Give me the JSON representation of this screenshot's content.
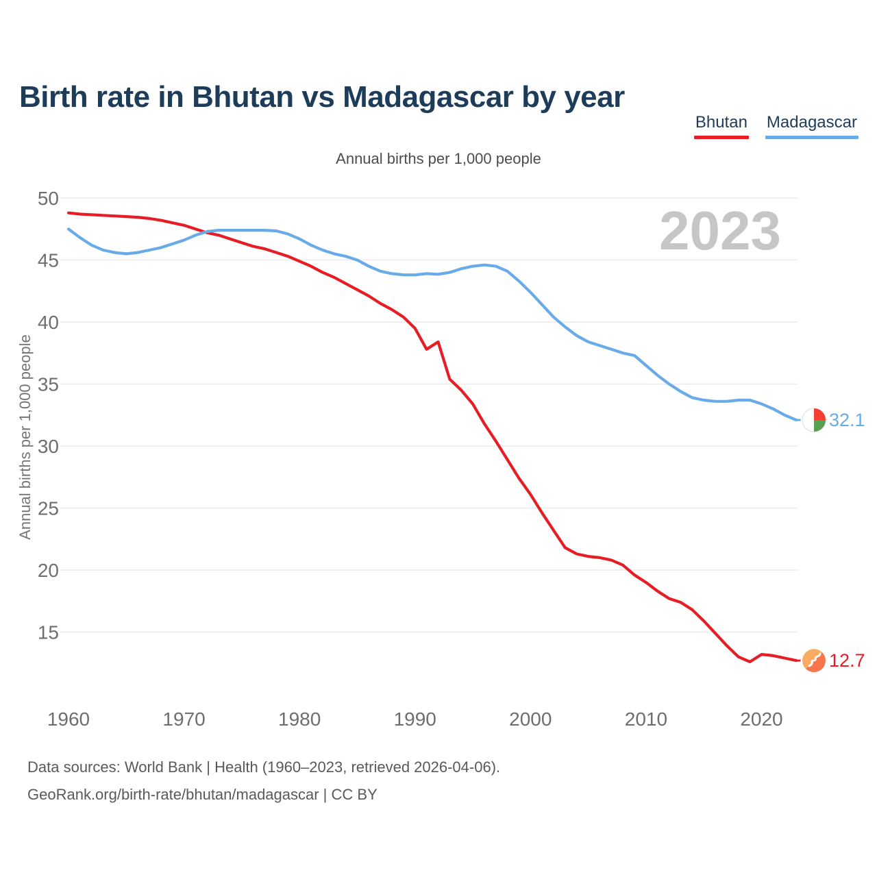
{
  "header": {
    "title": "Birth rate in Bhutan vs Madagascar by year"
  },
  "legend": {
    "items": [
      {
        "label": "Bhutan",
        "color": "#e71d25"
      },
      {
        "label": "Madagascar",
        "color": "#69abe8"
      }
    ]
  },
  "chart": {
    "subtitle": "Annual births per 1,000 people",
    "ylabel": "Annual births per 1,000 people",
    "watermark": "2023"
  },
  "chart_data": {
    "type": "line",
    "title": "Birth rate in Bhutan vs Madagascar by year",
    "subtitle": "Annual births per 1,000 people",
    "xlabel": "",
    "ylabel": "Annual births per 1,000 people",
    "watermark_year": "2023",
    "grid": "horizontal",
    "legend_position": "top-right",
    "xlim": [
      1960,
      2023
    ],
    "ylim": [
      12,
      50
    ],
    "xticks": [
      1960,
      1970,
      1980,
      1990,
      2000,
      2010,
      2020
    ],
    "yticks": [
      50,
      45,
      40,
      35,
      30,
      25,
      20,
      15
    ],
    "x": [
      1960,
      1961,
      1962,
      1963,
      1964,
      1965,
      1966,
      1967,
      1968,
      1969,
      1970,
      1971,
      1972,
      1973,
      1974,
      1975,
      1976,
      1977,
      1978,
      1979,
      1980,
      1981,
      1982,
      1983,
      1984,
      1985,
      1986,
      1987,
      1988,
      1989,
      1990,
      1991,
      1992,
      1993,
      1994,
      1995,
      1996,
      1997,
      1998,
      1999,
      2000,
      2001,
      2002,
      2003,
      2004,
      2005,
      2006,
      2007,
      2008,
      2009,
      2010,
      2011,
      2012,
      2013,
      2014,
      2015,
      2016,
      2017,
      2018,
      2019,
      2020,
      2021,
      2022,
      2023
    ],
    "series": [
      {
        "name": "Bhutan",
        "color": "#e71d25",
        "end_label": "12.7",
        "end_value": 12.7,
        "flag": "bhutan",
        "values": [
          48.8,
          48.7,
          48.65,
          48.6,
          48.55,
          48.5,
          48.45,
          48.35,
          48.2,
          48.0,
          47.8,
          47.5,
          47.2,
          47.0,
          46.7,
          46.4,
          46.1,
          45.9,
          45.6,
          45.3,
          44.9,
          44.5,
          44.0,
          43.6,
          43.1,
          42.6,
          42.1,
          41.5,
          41.0,
          40.4,
          39.5,
          37.8,
          38.4,
          35.4,
          34.5,
          33.4,
          31.8,
          30.4,
          28.9,
          27.4,
          26.1,
          24.6,
          23.2,
          21.8,
          21.3,
          21.1,
          21.0,
          20.8,
          20.4,
          19.6,
          19.0,
          18.3,
          17.7,
          17.4,
          16.8,
          15.9,
          14.9,
          13.9,
          13.0,
          12.6,
          13.2,
          13.1,
          12.9,
          12.7
        ]
      },
      {
        "name": "Madagascar",
        "color": "#69abe8",
        "end_label": "32.1",
        "end_value": 32.1,
        "flag": "madagascar",
        "values": [
          47.5,
          46.8,
          46.2,
          45.8,
          45.6,
          45.5,
          45.6,
          45.8,
          46.0,
          46.3,
          46.6,
          47.0,
          47.3,
          47.4,
          47.4,
          47.4,
          47.4,
          47.4,
          47.35,
          47.1,
          46.7,
          46.2,
          45.8,
          45.5,
          45.3,
          45.0,
          44.5,
          44.1,
          43.9,
          43.8,
          43.8,
          43.9,
          43.85,
          44.0,
          44.3,
          44.5,
          44.6,
          44.5,
          44.1,
          43.3,
          42.4,
          41.4,
          40.4,
          39.6,
          38.9,
          38.4,
          38.1,
          37.8,
          37.5,
          37.3,
          36.5,
          35.7,
          35.0,
          34.4,
          33.9,
          33.7,
          33.6,
          33.6,
          33.7,
          33.7,
          33.4,
          33.0,
          32.5,
          32.1
        ]
      }
    ]
  },
  "footer": {
    "line1": "Data sources: World Bank | Health (1960–2023, retrieved 2026-04-06).",
    "line2": "GeoRank.org/birth-rate/bhutan/madagascar | CC BY"
  }
}
